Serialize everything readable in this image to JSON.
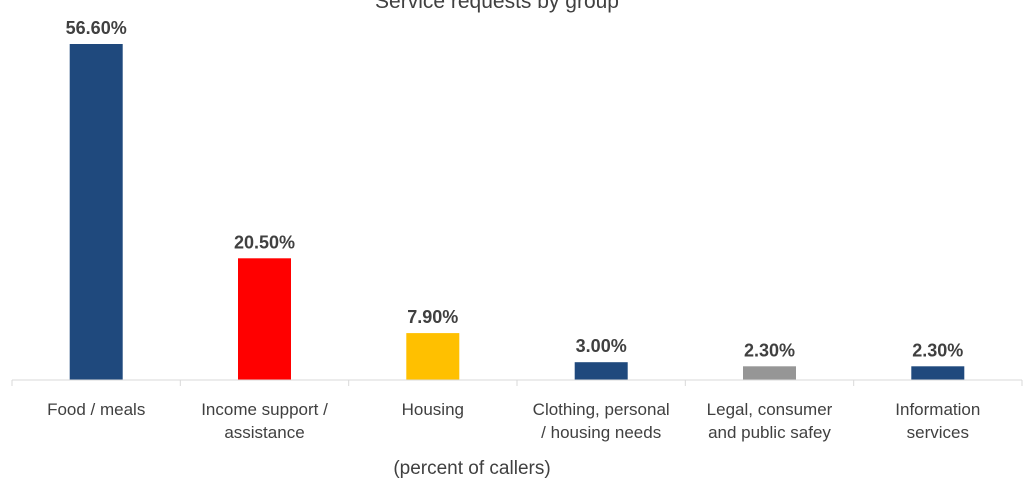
{
  "chart_data": {
    "type": "bar",
    "title": "Service requests by group",
    "xlabel": "(percent of callers)",
    "ylabel": "",
    "categories": [
      [
        "Food / meals"
      ],
      [
        "Income support /",
        "assistance"
      ],
      [
        "Housing"
      ],
      [
        "Clothing, personal",
        "/ housing needs"
      ],
      [
        "Legal, consumer",
        "and public safey"
      ],
      [
        "Information",
        "services"
      ]
    ],
    "values": [
      56.6,
      20.5,
      7.9,
      3.0,
      2.3,
      2.3
    ],
    "value_labels": [
      "56.60%",
      "20.50%",
      "7.90%",
      "3.00%",
      "2.30%",
      "2.30%"
    ],
    "bar_colors": [
      "#1F497D",
      "#FF0000",
      "#FFC000",
      "#1F497D",
      "#969696",
      "#1F497D"
    ],
    "ylim": [
      0,
      58
    ],
    "grid": false,
    "legend": "none"
  },
  "colors": {
    "text": "#404040",
    "axis": "#D9D9D9"
  }
}
